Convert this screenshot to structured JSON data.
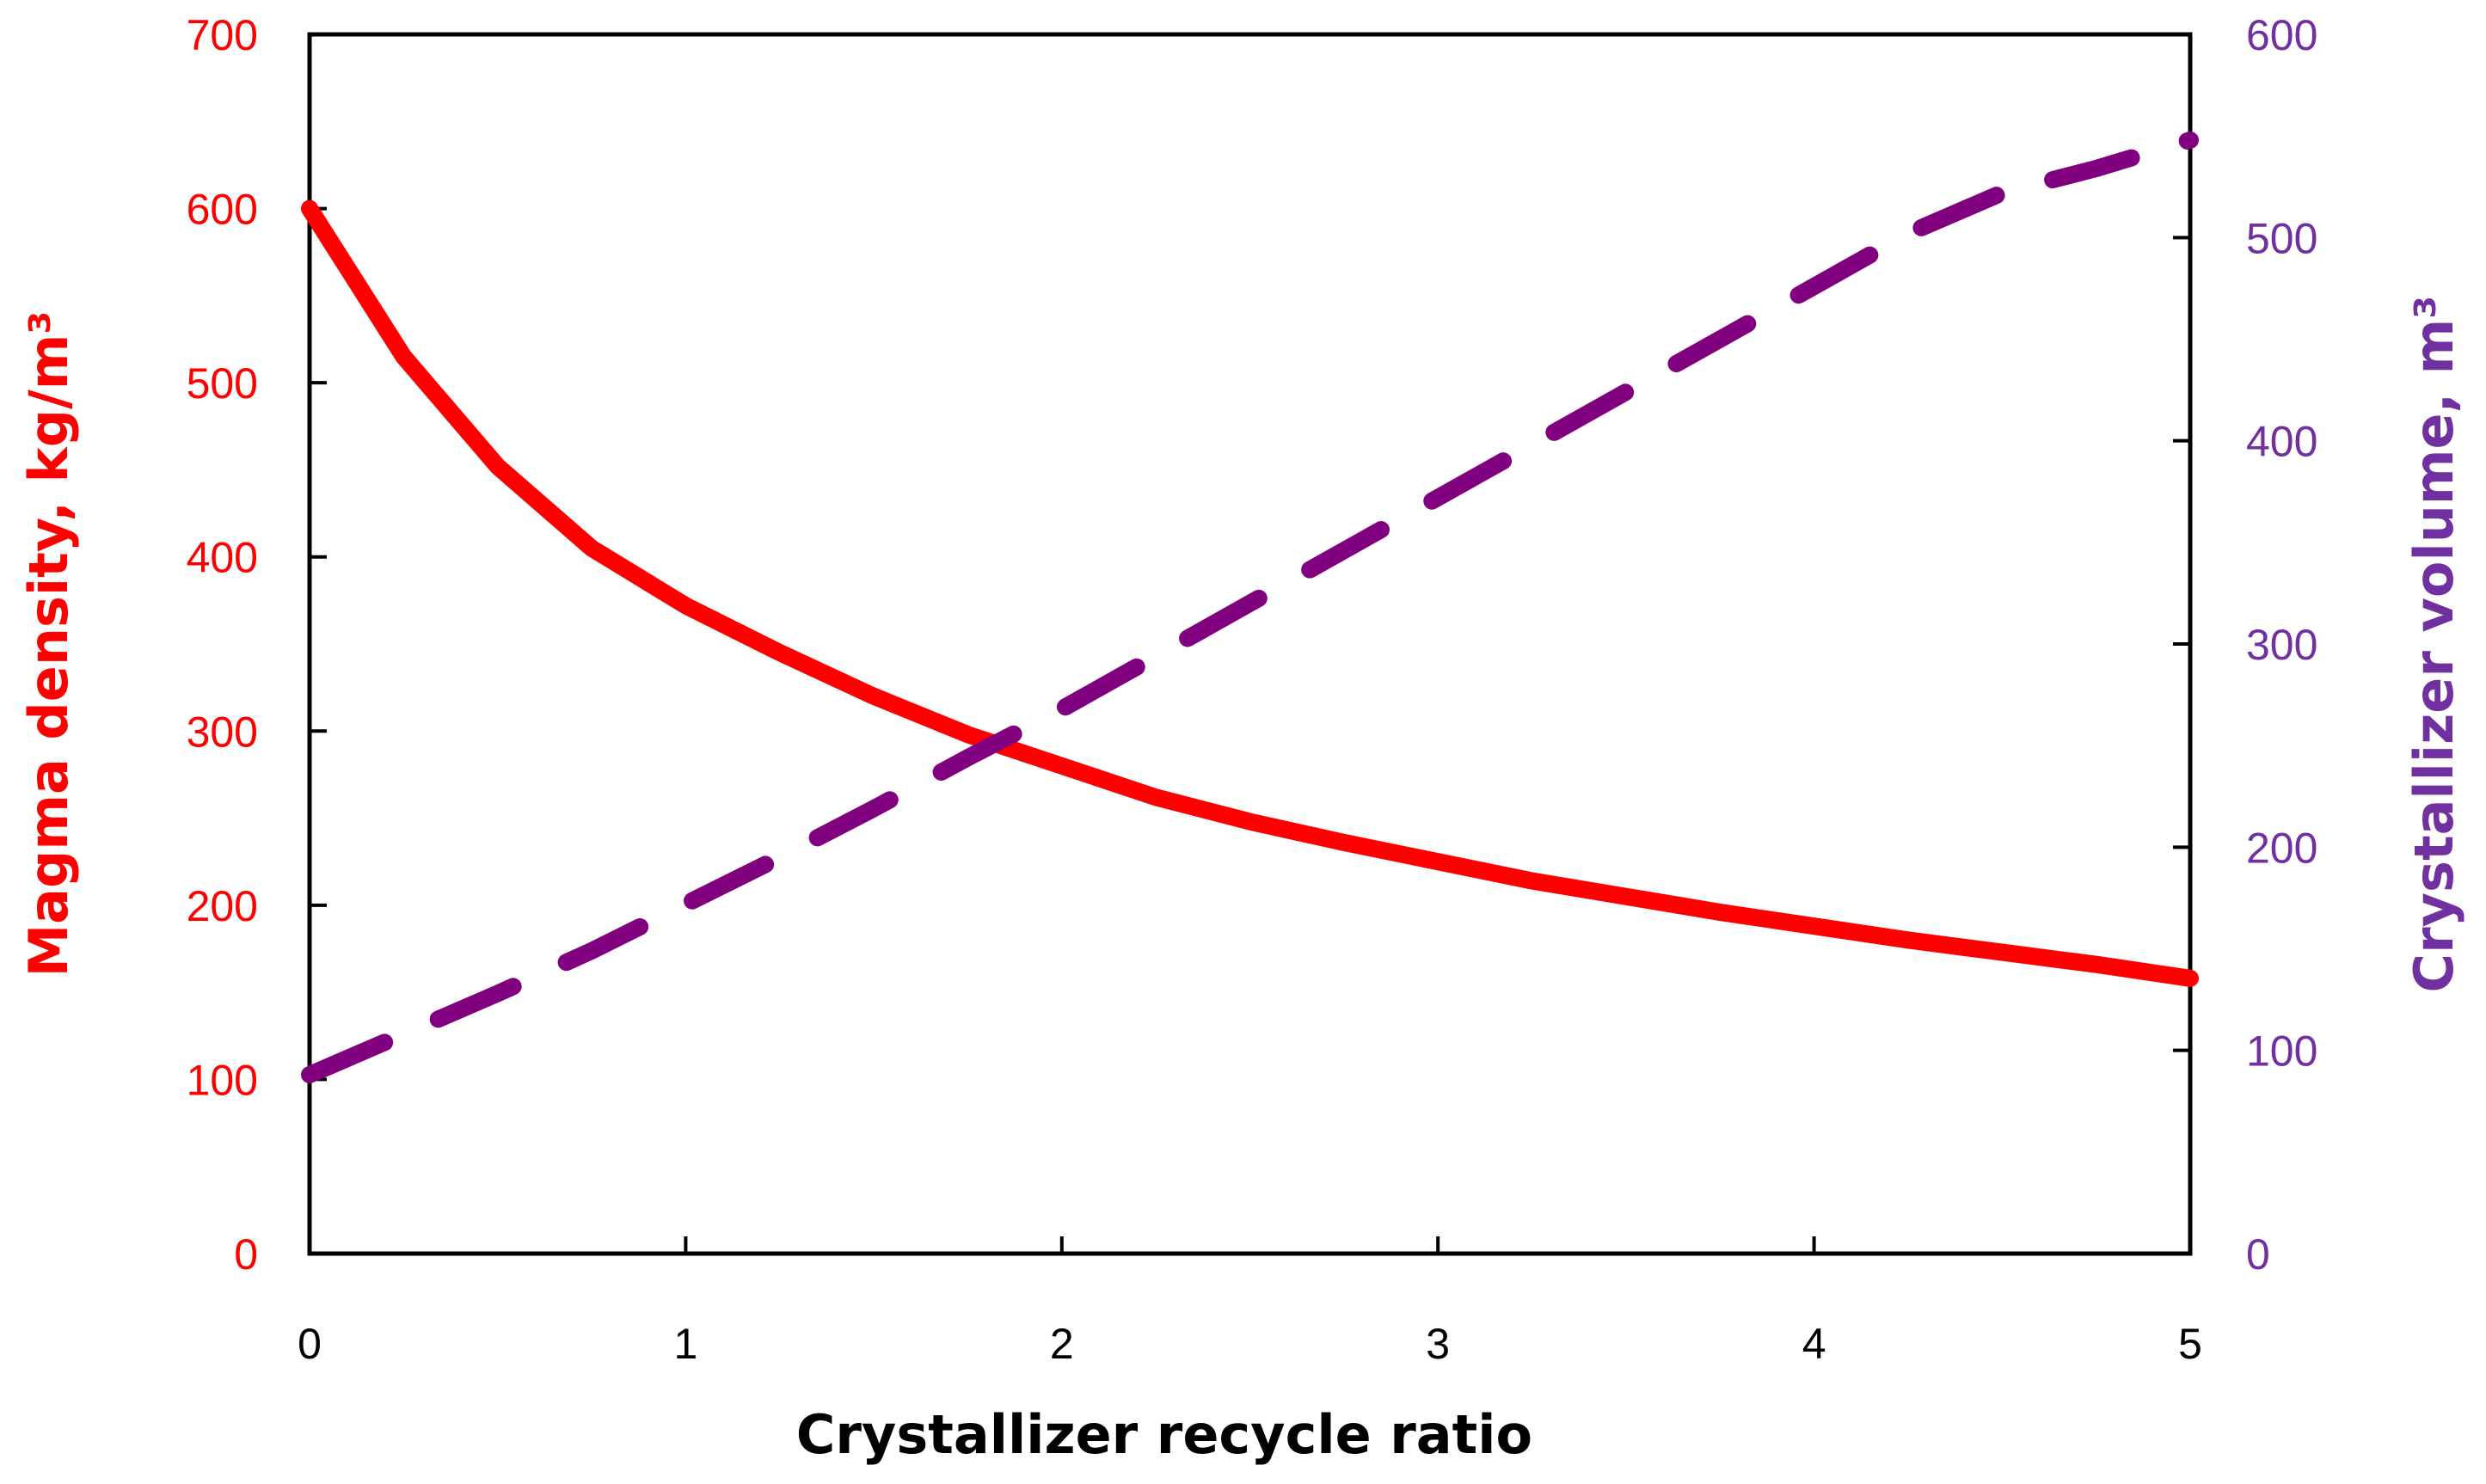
{
  "chart_data": {
    "type": "line",
    "x": [
      0,
      0.25,
      0.5,
      0.75,
      1,
      1.25,
      1.5,
      1.75,
      2,
      2.25,
      2.5,
      2.75,
      3,
      3.25,
      3.5,
      3.75,
      4,
      4.25,
      4.5,
      4.75,
      5
    ],
    "series": [
      {
        "name": "Magma density",
        "axis": "left",
        "color": "#ff0000",
        "dash": "solid",
        "values": [
          600,
          515,
          452,
          405,
          372,
          345,
          320,
          298,
          280,
          262,
          248,
          236,
          225,
          214,
          205,
          196,
          188,
          180,
          173,
          166,
          158
        ]
      },
      {
        "name": "Crystallizer volume",
        "axis": "right",
        "color": "#800080",
        "dash": "dashed",
        "values": [
          88,
          108,
          128,
          149,
          172,
          195,
          219,
          244,
          268,
          294,
          320,
          346,
          372,
          398,
          424,
          450,
          476,
          502,
          522,
          534,
          548
        ]
      }
    ],
    "title": "",
    "xlabel": "Crystallizer recycle ratio",
    "ylabel_left": "Magma density, kg/m³",
    "ylabel_right": "Crystallizer volume, m³",
    "xlim": [
      0,
      5
    ],
    "ylim_left": [
      0,
      700
    ],
    "ylim_right": [
      0,
      600
    ],
    "x_ticks": [
      "0",
      "1",
      "2",
      "3",
      "4",
      "5"
    ],
    "y_left_ticks": [
      "0",
      "100",
      "200",
      "300",
      "400",
      "500",
      "600",
      "700"
    ],
    "y_right_ticks": [
      "0",
      "100",
      "200",
      "300",
      "400",
      "500",
      "600"
    ],
    "grid": false,
    "legend": "none",
    "colors": {
      "left_axis": "#ff0000",
      "right_axis": "#7030a0",
      "frame": "#000000",
      "x_label": "#000000"
    }
  }
}
